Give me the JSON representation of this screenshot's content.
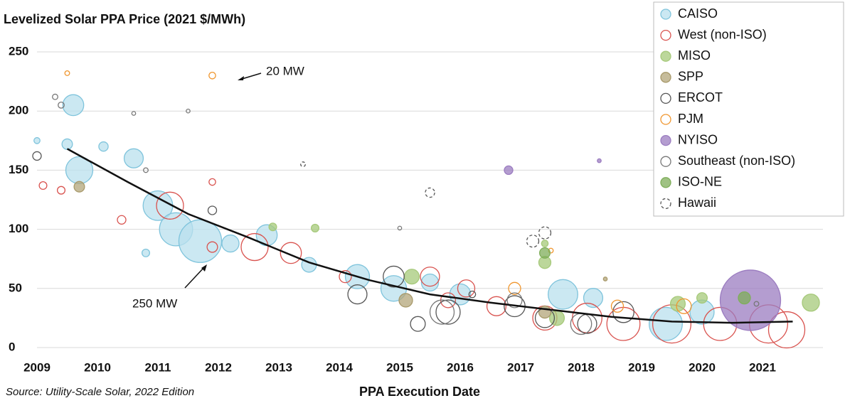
{
  "chart_data": {
    "type": "bubble",
    "title": "Levelized Solar PPA Price (2021 $/MWh)",
    "x_label": "PPA Execution Date",
    "source": "Source: Utility-Scale Solar, 2022 Edition",
    "xlim": [
      2009,
      2022
    ],
    "xticks": [
      2009,
      2010,
      2011,
      2012,
      2013,
      2014,
      2015,
      2016,
      2017,
      2018,
      2019,
      2020,
      2021
    ],
    "ylim": [
      0,
      250
    ],
    "yticks": [
      0,
      50,
      100,
      150,
      200,
      250
    ],
    "grid": true,
    "annotations": [
      {
        "text": "20 MW"
      },
      {
        "text": "250 MW"
      }
    ],
    "series": [
      {
        "name": "CAISO",
        "color": "#7fc4dc",
        "fill": "#b9e0ee",
        "marker": "filled",
        "x": [
          2009.6,
          2009.5,
          2009.7,
          2010.1,
          2010.6,
          2011.0,
          2011.3,
          2011.7,
          2012.2,
          2012.8,
          2013.5,
          2014.3,
          2014.9,
          2015.5,
          2016.0,
          2017.7,
          2018.2,
          2019.4,
          2020.0,
          2010.8,
          2009.0
        ],
        "values": [
          205,
          172,
          150,
          170,
          160,
          120,
          100,
          90,
          88,
          95,
          70,
          60,
          50,
          55,
          45,
          45,
          42,
          20,
          30,
          80,
          175
        ],
        "sizes": [
          60,
          15,
          100,
          12,
          50,
          120,
          150,
          250,
          40,
          60,
          30,
          80,
          90,
          40,
          60,
          120,
          50,
          150,
          80,
          8,
          5
        ]
      },
      {
        "name": "West (non-ISO)",
        "color": "#d9534f",
        "marker": "hollow",
        "x": [
          2009.1,
          2009.4,
          2010.4,
          2011.2,
          2011.9,
          2011.9,
          2012.6,
          2013.2,
          2014.1,
          2015.5,
          2016.1,
          2017.4,
          2018.1,
          2018.7,
          2019.5,
          2020.3,
          2021.1,
          2021.4,
          2015.8,
          2016.6
        ],
        "values": [
          137,
          133,
          108,
          120,
          140,
          85,
          85,
          80,
          60,
          60,
          50,
          25,
          25,
          20,
          20,
          20,
          20,
          15,
          40,
          35
        ],
        "sizes": [
          8,
          8,
          10,
          100,
          6,
          15,
          100,
          60,
          20,
          50,
          40,
          80,
          120,
          150,
          200,
          150,
          200,
          180,
          30,
          50
        ]
      },
      {
        "name": "MISO",
        "color": "#a6c97a",
        "fill": "#a6c97a",
        "marker": "filled",
        "x": [
          2012.9,
          2013.6,
          2015.2,
          2017.4,
          2017.4,
          2019.6,
          2020.0,
          2021.8,
          2017.6
        ],
        "values": [
          102,
          101,
          60,
          72,
          88,
          37,
          42,
          38,
          25
        ],
        "sizes": [
          8,
          8,
          30,
          20,
          6,
          30,
          15,
          40,
          30
        ]
      },
      {
        "name": "SPP",
        "color": "#a8996a",
        "fill": "#b3a57a",
        "marker": "filled",
        "x": [
          2009.7,
          2015.1,
          2017.4,
          2018.4
        ],
        "values": [
          136,
          40,
          30,
          58
        ],
        "sizes": [
          15,
          25,
          20,
          2
        ]
      },
      {
        "name": "ERCOT",
        "color": "#555555",
        "marker": "hollow",
        "x": [
          2009.0,
          2011.9,
          2014.3,
          2014.9,
          2015.3,
          2015.8,
          2016.2,
          2016.9,
          2017.4,
          2018.1,
          2018.7
        ],
        "values": [
          162,
          116,
          45,
          60,
          20,
          30,
          45,
          35,
          25,
          20,
          30
        ],
        "sizes": [
          10,
          10,
          50,
          60,
          30,
          80,
          6,
          60,
          50,
          50,
          60
        ]
      },
      {
        "name": "PJM",
        "color": "#f0962e",
        "marker": "hollow",
        "x": [
          2009.5,
          2011.9,
          2016.9,
          2017.5,
          2019.7,
          2018.6
        ],
        "values": [
          232,
          230,
          50,
          82,
          35,
          35
        ],
        "sizes": [
          3,
          6,
          20,
          3,
          30,
          20
        ]
      },
      {
        "name": "NYISO",
        "color": "#9b7cc0",
        "fill": "#9b7cc0",
        "marker": "filled",
        "x": [
          2016.8,
          2018.3,
          2020.8
        ],
        "values": [
          150,
          158,
          40
        ],
        "sizes": [
          10,
          2,
          500
        ]
      },
      {
        "name": "Southeast (non-ISO)",
        "color": "#777777",
        "marker": "hollow",
        "x": [
          2009.3,
          2009.4,
          2010.6,
          2011.5,
          2010.8,
          2015.0,
          2015.7,
          2016.9,
          2018.0,
          2020.9
        ],
        "values": [
          212,
          205,
          198,
          200,
          150,
          101,
          30,
          40,
          20,
          37
        ],
        "sizes": [
          4,
          5,
          2,
          2,
          3,
          2,
          80,
          30,
          60,
          3
        ]
      },
      {
        "name": "ISO-NE",
        "color": "#7fae5a",
        "fill": "#7fae5a",
        "marker": "filled",
        "x": [
          2017.4,
          2020.7
        ],
        "values": [
          80,
          42
        ],
        "sizes": [
          15,
          20
        ]
      },
      {
        "name": "Hawaii",
        "color": "#555555",
        "marker": "dashed",
        "x": [
          2013.4,
          2015.5,
          2017.2,
          2017.4
        ],
        "values": [
          155,
          131,
          90,
          97
        ],
        "sizes": [
          3,
          12,
          20,
          20
        ]
      }
    ],
    "trend": {
      "x": [
        2009.5,
        2010.5,
        2011.5,
        2012.5,
        2013.5,
        2014.5,
        2015.5,
        2016.5,
        2017.5,
        2018.5,
        2019.5,
        2020.5,
        2021.5
      ],
      "values": [
        168,
        140,
        113,
        93,
        72,
        57,
        45,
        38,
        32,
        26,
        22,
        21,
        22
      ]
    }
  }
}
